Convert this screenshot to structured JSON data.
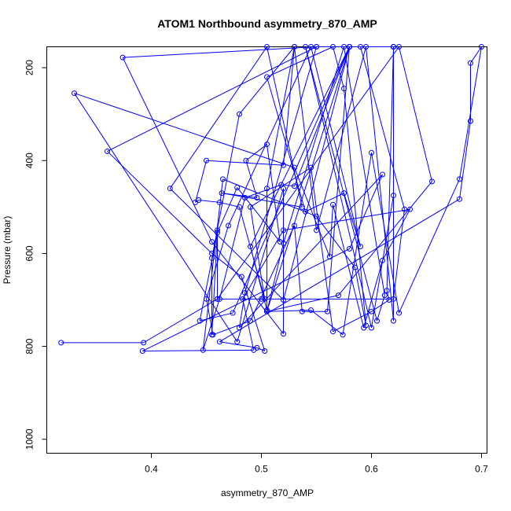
{
  "chart_data": {
    "type": "line",
    "title": "ATOM1 Northbound asymmetry_870_AMP",
    "xlabel": "asymmetry_870_AMP",
    "ylabel": "Pressure (mbar)",
    "xlim": [
      0.305,
      0.705
    ],
    "ylim": [
      1030,
      155
    ],
    "y_reversed": true,
    "x_ticks": [
      0.4,
      0.5,
      0.6,
      0.7
    ],
    "x_tick_labels": [
      "0.4",
      "0.5",
      "0.6",
      "0.7"
    ],
    "y_ticks": [
      200,
      400,
      600,
      800,
      1000
    ],
    "y_tick_labels": [
      "200",
      "400",
      "600",
      "800",
      "1000"
    ],
    "grid": false,
    "colors": {
      "series": "#0000ff",
      "axes": "#000000"
    },
    "series": [
      {
        "points": [
          [
            0.318,
            792
          ],
          [
            0.393,
            792
          ],
          [
            0.46,
            698
          ],
          [
            0.5,
            698
          ],
          [
            0.62,
            698
          ],
          [
            0.63,
            505
          ],
          [
            0.59,
            155
          ],
          [
            0.55,
            155
          ],
          [
            0.374,
            178
          ],
          [
            0.455,
            575
          ],
          [
            0.52,
            773
          ],
          [
            0.52,
            460
          ],
          [
            0.478,
            790
          ],
          [
            0.33,
            255
          ],
          [
            0.53,
            415
          ],
          [
            0.562,
            607
          ],
          [
            0.565,
            495
          ],
          [
            0.593,
            760
          ],
          [
            0.61,
            615
          ],
          [
            0.635,
            505
          ],
          [
            0.52,
            550
          ],
          [
            0.483,
            698
          ],
          [
            0.493,
            808
          ],
          [
            0.392,
            810
          ],
          [
            0.58,
            590
          ],
          [
            0.61,
            430
          ],
          [
            0.48,
            760
          ],
          [
            0.485,
            685
          ],
          [
            0.55,
            155
          ],
          [
            0.36,
            380
          ],
          [
            0.455,
            600
          ],
          [
            0.482,
            650
          ],
          [
            0.503,
            810
          ],
          [
            0.496,
            803
          ],
          [
            0.462,
            790
          ],
          [
            0.68,
            483
          ],
          [
            0.69,
            315
          ],
          [
            0.69,
            190
          ],
          [
            0.7,
            155
          ],
          [
            0.68,
            440
          ],
          [
            0.625,
            728
          ],
          [
            0.6,
            383
          ],
          [
            0.574,
            775
          ],
          [
            0.545,
            722
          ],
          [
            0.505,
            725
          ],
          [
            0.58,
            155
          ],
          [
            0.474,
            728
          ],
          [
            0.444,
            745
          ],
          [
            0.46,
            555
          ],
          [
            0.478,
            458
          ],
          [
            0.517,
            575
          ],
          [
            0.505,
            365
          ],
          [
            0.486,
            400
          ],
          [
            0.496,
            480
          ],
          [
            0.464,
            470
          ],
          [
            0.537,
            500
          ],
          [
            0.505,
            155
          ],
          [
            0.417,
            460
          ],
          [
            0.52,
            700
          ],
          [
            0.58,
            155
          ],
          [
            0.53,
            455
          ],
          [
            0.518,
            452
          ],
          [
            0.485,
            480
          ],
          [
            0.462,
            698
          ],
          [
            0.447,
            808
          ],
          [
            0.465,
            440
          ],
          [
            0.55,
            520
          ],
          [
            0.585,
            630
          ],
          [
            0.595,
            755
          ],
          [
            0.575,
            245
          ],
          [
            0.565,
            155
          ],
          [
            0.505,
            220
          ],
          [
            0.54,
            510
          ],
          [
            0.575,
            470
          ],
          [
            0.59,
            585
          ],
          [
            0.545,
            155
          ],
          [
            0.47,
            540
          ],
          [
            0.45,
            698
          ],
          [
            0.456,
            775
          ],
          [
            0.49,
            745
          ],
          [
            0.53,
            540
          ],
          [
            0.537,
            725
          ],
          [
            0.56,
            725
          ],
          [
            0.58,
            155
          ],
          [
            0.62,
            155
          ],
          [
            0.614,
            680
          ],
          [
            0.616,
            700
          ],
          [
            0.6,
            725
          ],
          [
            0.565,
            768
          ],
          [
            0.545,
            415
          ],
          [
            0.49,
            500
          ],
          [
            0.503,
            698
          ],
          [
            0.48,
            500
          ],
          [
            0.462,
            490
          ],
          [
            0.443,
            485
          ],
          [
            0.44,
            490
          ],
          [
            0.45,
            400
          ],
          [
            0.52,
            410
          ],
          [
            0.53,
            155
          ],
          [
            0.48,
            300
          ],
          [
            0.455,
            610
          ],
          [
            0.455,
            775
          ],
          [
            0.46,
            550
          ],
          [
            0.46,
            698
          ],
          [
            0.625,
            155
          ],
          [
            0.655,
            445
          ],
          [
            0.57,
            690
          ],
          [
            0.505,
            725
          ],
          [
            0.52,
            578
          ],
          [
            0.575,
            155
          ],
          [
            0.612,
            690
          ],
          [
            0.605,
            745
          ],
          [
            0.54,
            155
          ],
          [
            0.6,
            760
          ],
          [
            0.62,
            475
          ],
          [
            0.62,
            155
          ],
          [
            0.58,
            155
          ],
          [
            0.49,
            585
          ],
          [
            0.505,
            722
          ],
          [
            0.505,
            460
          ],
          [
            0.53,
            155
          ],
          [
            0.55,
            550
          ],
          [
            0.595,
            155
          ],
          [
            0.62,
            745
          ],
          [
            0.62,
            155
          ]
        ]
      }
    ]
  }
}
